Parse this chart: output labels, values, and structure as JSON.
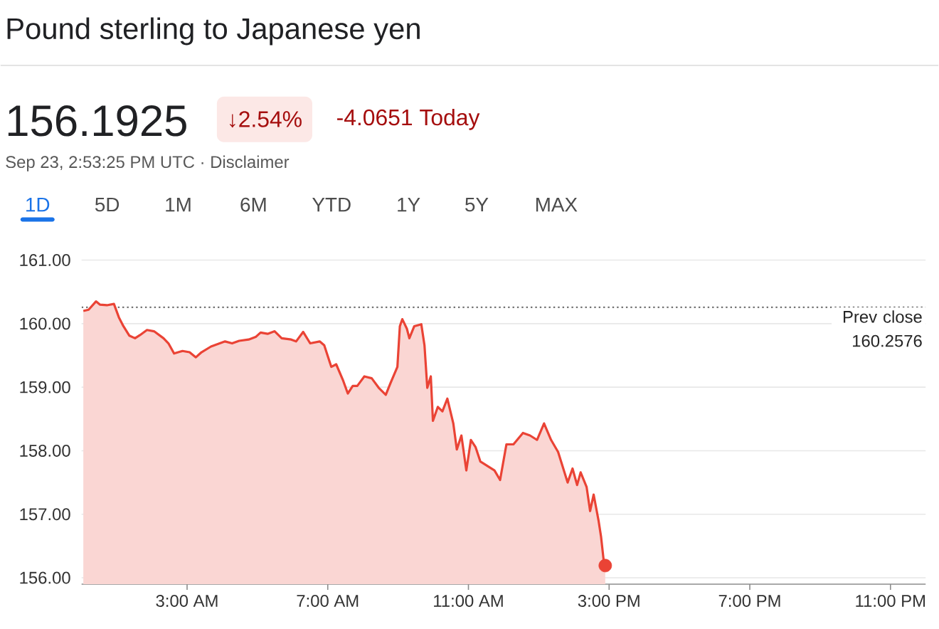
{
  "chart_data": {
    "type": "area",
    "title": "Pound sterling to Japanese yen",
    "annotations": [
      "156.1925",
      "↓2.54%",
      "-4.0651 Today",
      "Sep 23, 2:53:25 PM UTC · Disclaimer",
      "1D",
      "5D",
      "1M",
      "6M",
      "YTD",
      "1Y",
      "5Y",
      "MAX"
    ],
    "series": [
      {
        "color": "#ea4335",
        "x": [
          0.05,
          0.2,
          0.41,
          0.52,
          0.72,
          0.92,
          1.06,
          1.19,
          1.36,
          1.52,
          1.66,
          1.86,
          2.06,
          2.33,
          2.47,
          2.63,
          2.87,
          3.07,
          3.25,
          3.41,
          3.68,
          3.88,
          4.08,
          4.28,
          4.48,
          4.75,
          4.95,
          5.09,
          5.29,
          5.49,
          5.69,
          5.96,
          6.1,
          6.3,
          6.5,
          6.77,
          6.9,
          7.1,
          7.24,
          7.44,
          7.57,
          7.71,
          7.84,
          8.04,
          8.25,
          8.45,
          8.65,
          8.78,
          8.98,
          9.05,
          9.12,
          9.25,
          9.32,
          9.46,
          9.66,
          9.75,
          9.83,
          9.93,
          9.99,
          10.13,
          10.26,
          10.4,
          10.57,
          10.67,
          10.8,
          10.94,
          11.07,
          11.2,
          11.34,
          11.54,
          11.74,
          11.9,
          12.08,
          12.28,
          12.55,
          12.75,
          12.95,
          13.15,
          13.35,
          13.55,
          13.82,
          13.96,
          14.09,
          14.19,
          14.36,
          14.46,
          14.56,
          14.7,
          14.77,
          14.86,
          14.89
        ],
        "values": [
          160.2,
          160.22,
          160.35,
          160.3,
          160.29,
          160.31,
          160.1,
          159.96,
          159.81,
          159.77,
          159.82,
          159.9,
          159.88,
          159.77,
          159.69,
          159.53,
          159.57,
          159.55,
          159.47,
          159.55,
          159.64,
          159.68,
          159.72,
          159.69,
          159.73,
          159.75,
          159.79,
          159.86,
          159.84,
          159.88,
          159.77,
          159.75,
          159.72,
          159.87,
          159.69,
          159.72,
          159.66,
          159.32,
          159.36,
          159.1,
          158.9,
          159.02,
          159.02,
          159.17,
          159.14,
          158.99,
          158.88,
          159.06,
          159.32,
          159.96,
          160.07,
          159.92,
          159.77,
          159.96,
          159.99,
          159.66,
          158.99,
          159.17,
          158.47,
          158.69,
          158.62,
          158.82,
          158.43,
          158.02,
          158.24,
          157.69,
          158.17,
          158.06,
          157.83,
          157.76,
          157.69,
          157.54,
          158.1,
          158.1,
          158.28,
          158.24,
          158.17,
          158.43,
          158.17,
          157.98,
          157.5,
          157.72,
          157.46,
          157.66,
          157.43,
          157.05,
          157.31,
          156.9,
          156.65,
          156.2,
          156.1925
        ]
      },
      {
        "type": "scatter",
        "marker": "circle",
        "color": "#ea4335",
        "x": [
          14.89
        ],
        "values": [
          156.1925
        ]
      }
    ],
    "xlim": [
      0,
      24
    ],
    "xticks": [
      {
        "value": 3,
        "label": "3:00 AM"
      },
      {
        "value": 7,
        "label": "7:00 AM"
      },
      {
        "value": 11,
        "label": "11:00 AM"
      },
      {
        "value": 15,
        "label": "3:00 PM"
      },
      {
        "value": 19,
        "label": "7:00 PM"
      },
      {
        "value": 23,
        "label": "11:00 PM"
      }
    ],
    "ylim": [
      155.9,
      161
    ],
    "yticks": [
      {
        "value": 156,
        "label": "156.00"
      },
      {
        "value": 157,
        "label": "157.00"
      },
      {
        "value": 158,
        "label": "158.00"
      },
      {
        "value": 159,
        "label": "159.00"
      },
      {
        "value": 160,
        "label": "160.00"
      },
      {
        "value": 161,
        "label": "161.00"
      }
    ],
    "grid": "y",
    "ref_lines": [
      {
        "axis": "y",
        "value": 160.2576,
        "label": "Prev close 160.2576",
        "line_style": "dotted",
        "color": "#757575"
      }
    ]
  }
}
